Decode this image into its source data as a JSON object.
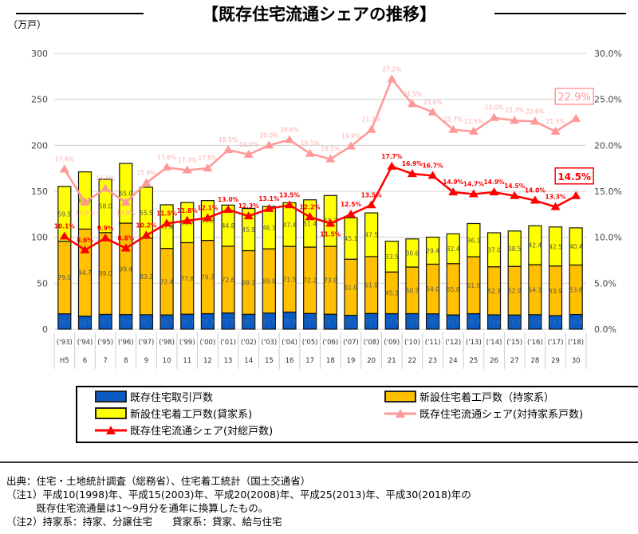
{
  "title": "【既存住宅流通シェアの推移】",
  "unit_label": "（万戸）",
  "chart_data": {
    "type": "bar",
    "stacked": true,
    "categories": [
      "('93)",
      "('94)",
      "('95)",
      "('96)",
      "('97)",
      "('98)",
      "('99)",
      "('00)",
      "('01)",
      "('02)",
      "('03)",
      "('04)",
      "('05)",
      "('06)",
      "('07)",
      "('08)",
      "('09)",
      "('10)",
      "('11)",
      "('12)",
      "('13)",
      "('14)",
      "('15)",
      "('16)",
      "('17)",
      "('18)"
    ],
    "era_labels": [
      "H5",
      "6",
      "7",
      "8",
      "9",
      "10",
      "11",
      "12",
      "13",
      "14",
      "15",
      "16",
      "17",
      "18",
      "19",
      "20",
      "21",
      "22",
      "23",
      "24",
      "25",
      "26",
      "27",
      "28",
      "29",
      "30"
    ],
    "left_axis": {
      "ylim": [
        0,
        300
      ],
      "ticks": [
        "0",
        "50",
        "100",
        "150",
        "200",
        "250",
        "300"
      ]
    },
    "right_axis": {
      "ylim": [
        0,
        30
      ],
      "ticks": [
        "0.0%",
        "5.0%",
        "10.0%",
        "15.0%",
        "20.0%",
        "25.0%",
        "30.0%"
      ]
    },
    "grid": true,
    "legend_placement": "bottom",
    "series": [
      {
        "name": "既存住宅取引戸数",
        "type": "bar",
        "color": "#0a5bc4",
        "values": [
          16.7,
          14.2,
          16.1,
          15.9,
          15.7,
          15.5,
          16.3,
          16.9,
          17.6,
          16.2,
          17.5,
          18.6,
          17.1,
          16.3,
          15.1,
          17.1,
          16.9,
          16.9,
          16.7,
          15.5,
          16.9,
          15.6,
          15.4,
          15.8,
          14.8,
          16.0
        ]
      },
      {
        "name": "新設住宅着工戸数（持家系）",
        "type": "bar",
        "color": "#ffc000",
        "values": [
          79.0,
          94.7,
          89.0,
          99.4,
          83.2,
          72.4,
          77.8,
          79.7,
          72.6,
          69.2,
          69.9,
          71.5,
          72.2,
          73.8,
          61.0,
          61.9,
          45.3,
          50.7,
          54.0,
          55.8,
          61.9,
          52.3,
          52.9,
          54.3,
          53.9,
          53.8
        ]
      },
      {
        "name": "新設住宅着工戸数(貸家系)",
        "type": "bar",
        "color": "#ffff00",
        "values": [
          59.5,
          62.2,
          58.0,
          65.0,
          55.5,
          47.4,
          43.7,
          43.3,
          44.8,
          45.9,
          46.1,
          47.4,
          51.4,
          55.3,
          45.1,
          47.5,
          33.5,
          30.6,
          29.4,
          32.4,
          36.1,
          37.0,
          38.5,
          42.4,
          42.5,
          40.4
        ]
      },
      {
        "name": "既存住宅流通シェア(対持家系戸数)",
        "type": "line",
        "axis": "right",
        "color": "#ff9999",
        "values": [
          17.4,
          13.8,
          15.3,
          13.8,
          15.9,
          17.6,
          17.3,
          17.5,
          19.5,
          19.0,
          20.0,
          20.6,
          19.1,
          18.5,
          19.9,
          21.7,
          27.2,
          24.5,
          23.6,
          21.7,
          21.5,
          23.0,
          22.7,
          22.6,
          21.5,
          22.9
        ]
      },
      {
        "name": "既存住宅流通シェア(対総戸数)",
        "type": "line",
        "axis": "right",
        "color": "#ff0000",
        "values": [
          10.1,
          8.6,
          9.9,
          8.8,
          10.2,
          11.5,
          11.8,
          12.1,
          13.0,
          12.3,
          13.1,
          13.5,
          12.2,
          11.5,
          12.5,
          13.5,
          17.7,
          16.9,
          16.7,
          14.9,
          14.7,
          14.9,
          14.5,
          14.0,
          13.3,
          14.5
        ]
      }
    ],
    "callouts": {
      "pink_last": "22.9%",
      "red_last": "14.5%"
    }
  },
  "notes": [
    "出典：住宅・土地統計調査（総務省）、住宅着工統計（国土交通省）",
    "（注1）平成10(1998)年、平成15(2003)年、平成20(2008)年、平成25(2013)年、平成30(2018)年の",
    "　　　既存住宅流通量は1～9月分を通年に換算したもの。",
    "（注2）持家系：持家、分譲住宅　　貸家系：貸家、給与住宅"
  ]
}
